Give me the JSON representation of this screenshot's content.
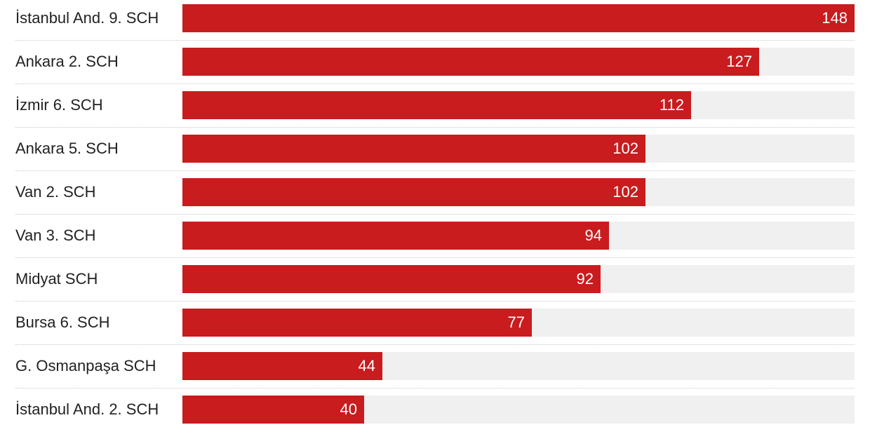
{
  "chart_data": {
    "type": "bar",
    "orientation": "horizontal",
    "title": "",
    "xlabel": "",
    "ylabel": "",
    "xlim": [
      0,
      148
    ],
    "grid": false,
    "bar_color": "#c81c1e",
    "track_color": "#f0f0f0",
    "categories": [
      "İstanbul And. 9. SCH",
      "Ankara 2. SCH",
      "İzmir 6. SCH",
      "Ankara 5. SCH",
      "Van 2. SCH",
      "Van 3. SCH",
      "Midyat SCH",
      "Bursa 6. SCH",
      "G. Osmanpaşa SCH",
      "İstanbul And. 2. SCH"
    ],
    "values": [
      148,
      127,
      112,
      102,
      102,
      94,
      92,
      77,
      44,
      40
    ]
  }
}
